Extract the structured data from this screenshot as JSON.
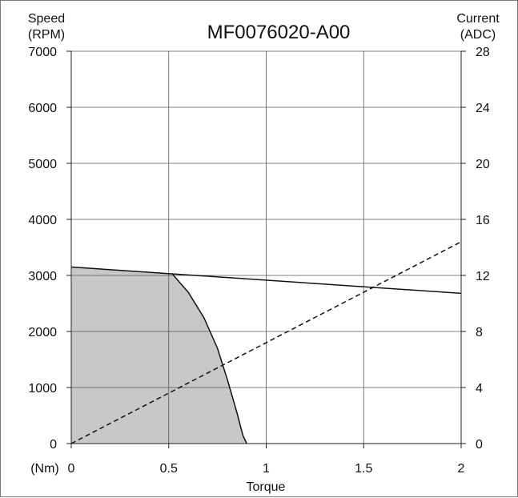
{
  "chart_data": {
    "type": "line",
    "title": "MF0076020-A00",
    "xlabel": "Torque",
    "x_unit": "(Nm)",
    "ylabel_left": [
      "Speed",
      "(RPM)"
    ],
    "ylabel_right": [
      "Current",
      "(ADC)"
    ],
    "xlim": [
      0,
      2
    ],
    "ylim": [
      0,
      7000
    ],
    "y2lim": [
      0,
      28
    ],
    "x_ticks": [
      "0",
      "0.5",
      "1",
      "1.5",
      "2"
    ],
    "y_ticks": [
      "0",
      "1000",
      "2000",
      "3000",
      "4000",
      "5000",
      "6000",
      "7000"
    ],
    "y2_ticks": [
      "0",
      "4",
      "8",
      "12",
      "16",
      "20",
      "24",
      "28"
    ],
    "grid": true,
    "series": [
      {
        "axis": "left",
        "style": "solid",
        "x": [
          0,
          2
        ],
        "y": [
          3150,
          2680
        ]
      },
      {
        "axis": "left",
        "style": "solid-filled",
        "fill": "#c8c8c8",
        "x": [
          0.52,
          0.6,
          0.68,
          0.75,
          0.8,
          0.85,
          0.88,
          0.9
        ],
        "y": [
          3020,
          2700,
          2250,
          1700,
          1150,
          550,
          150,
          0
        ]
      },
      {
        "axis": "right",
        "style": "dashed",
        "x": [
          0,
          2
        ],
        "y": [
          0,
          14.4
        ]
      }
    ]
  }
}
